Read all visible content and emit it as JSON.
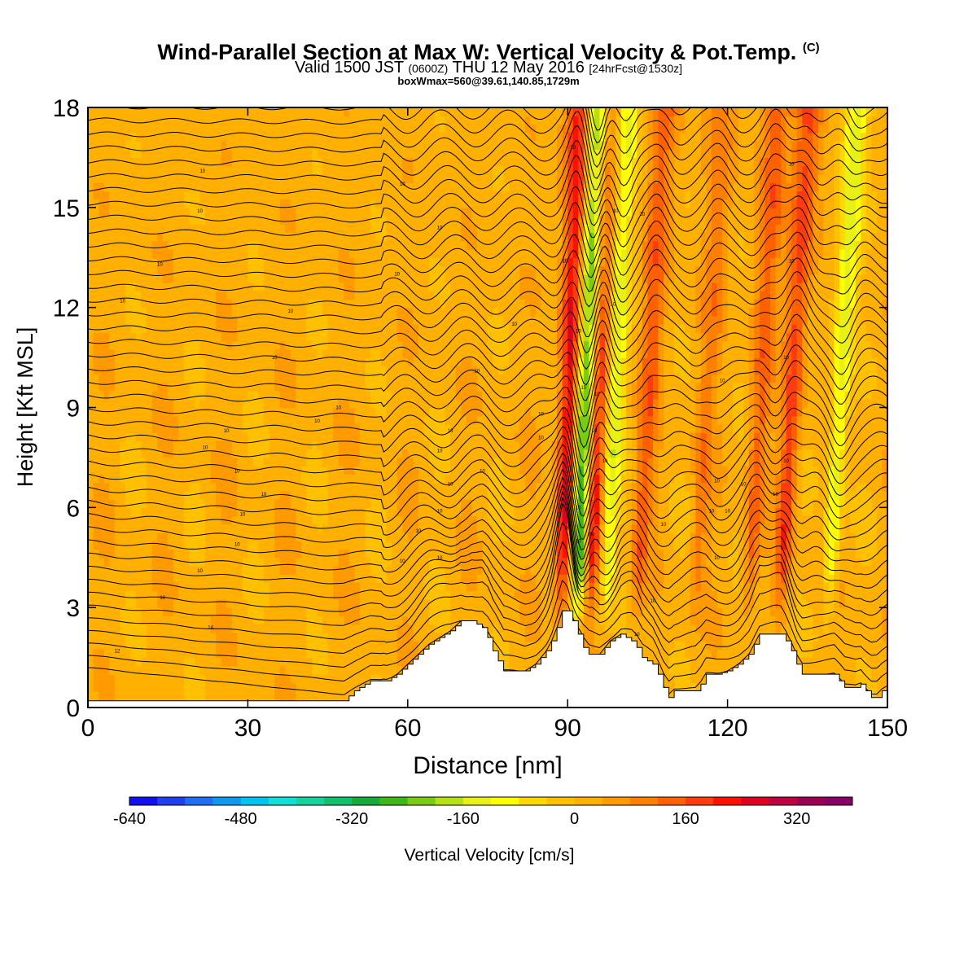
{
  "header": {
    "title": "Wind-Parallel Section at Max W: Vertical Velocity & Pot.Temp.",
    "copyright": "(C)",
    "valid_prefix": "Valid 1500 JST",
    "valid_utc": "(0600Z)",
    "valid_date": "THU 12 May 2016",
    "forecast": "[24hrFcst@1530z]",
    "box_info": "boxWmax=560@39.61,140.85,1729m"
  },
  "chart_data": {
    "type": "heatmap",
    "xlabel": "Distance [nm]",
    "ylabel": "Height [Kft MSL]",
    "xlim": [
      0,
      150
    ],
    "ylim": [
      0,
      18
    ],
    "x_ticks": [
      0,
      30,
      60,
      90,
      120,
      150
    ],
    "y_ticks": [
      0,
      3,
      6,
      9,
      12,
      15,
      18
    ],
    "colorbar": {
      "label": "Vertical Velocity [cm/s]",
      "min": -640,
      "max": 400,
      "step": 40,
      "tick_values": [
        -640,
        -480,
        -320,
        -160,
        0,
        160,
        320
      ],
      "colors": [
        "#1010f0",
        "#1e40f0",
        "#1f6ff2",
        "#0f98f0",
        "#00c4f0",
        "#10e0d8",
        "#14d49e",
        "#14c06c",
        "#16aa3a",
        "#3cb818",
        "#78cc12",
        "#b4e014",
        "#e8f014",
        "#ffff00",
        "#ffd800",
        "#ffc000",
        "#ffb000",
        "#ff9a00",
        "#ff8000",
        "#ff6000",
        "#ff3c10",
        "#ff1000",
        "#e00020",
        "#c00040",
        "#9c0050",
        "#880068"
      ]
    },
    "terrain": [
      [
        0,
        0.2
      ],
      [
        2,
        0.2
      ],
      [
        5,
        0.2
      ],
      [
        8,
        0.2
      ],
      [
        12,
        0.2
      ],
      [
        16,
        0.2
      ],
      [
        20,
        0.2
      ],
      [
        25,
        0.2
      ],
      [
        30,
        0.2
      ],
      [
        35,
        0.2
      ],
      [
        40,
        0.2
      ],
      [
        44,
        0.2
      ],
      [
        48,
        0.2
      ],
      [
        50,
        0.5
      ],
      [
        53,
        0.8
      ],
      [
        56,
        0.8
      ],
      [
        58,
        1.0
      ],
      [
        60,
        1.3
      ],
      [
        62,
        1.6
      ],
      [
        64,
        1.9
      ],
      [
        66,
        2.1
      ],
      [
        68,
        2.3
      ],
      [
        70,
        2.6
      ],
      [
        72,
        2.6
      ],
      [
        74,
        2.4
      ],
      [
        75,
        2.1
      ],
      [
        76,
        1.7
      ],
      [
        77,
        1.4
      ],
      [
        78,
        1.1
      ],
      [
        80,
        1.1
      ],
      [
        82,
        1.1
      ],
      [
        84,
        1.3
      ],
      [
        85,
        1.5
      ],
      [
        86,
        1.7
      ],
      [
        87,
        2.0
      ],
      [
        88,
        2.4
      ],
      [
        89,
        2.9
      ],
      [
        90,
        2.9
      ],
      [
        91,
        2.6
      ],
      [
        92,
        2.2
      ],
      [
        93,
        1.8
      ],
      [
        94,
        1.6
      ],
      [
        96,
        1.6
      ],
      [
        97,
        1.8
      ],
      [
        98,
        2.0
      ],
      [
        100,
        2.2
      ],
      [
        102,
        2.0
      ],
      [
        103,
        1.8
      ],
      [
        104,
        1.5
      ],
      [
        106,
        1.3
      ],
      [
        107,
        1.0
      ],
      [
        108,
        0.6
      ],
      [
        109,
        0.3
      ],
      [
        110,
        0.5
      ],
      [
        112,
        0.5
      ],
      [
        114,
        0.5
      ],
      [
        115,
        0.7
      ],
      [
        116,
        1.0
      ],
      [
        118,
        1.0
      ],
      [
        120,
        1.1
      ],
      [
        122,
        1.3
      ],
      [
        124,
        1.6
      ],
      [
        125,
        1.9
      ],
      [
        126,
        2.2
      ],
      [
        128,
        2.2
      ],
      [
        130,
        2.2
      ],
      [
        131,
        2.0
      ],
      [
        132,
        1.7
      ],
      [
        133,
        1.3
      ],
      [
        134,
        1.0
      ],
      [
        136,
        1.0
      ],
      [
        138,
        1.0
      ],
      [
        140,
        1.0
      ],
      [
        141,
        0.8
      ],
      [
        142,
        0.6
      ],
      [
        144,
        0.6
      ],
      [
        145,
        0.7
      ],
      [
        146,
        0.5
      ],
      [
        147,
        0.3
      ],
      [
        148,
        0.3
      ],
      [
        149,
        0.5
      ],
      [
        150,
        0.6
      ]
    ],
    "updraft_bands": [
      {
        "x": 89.5,
        "value": 250
      },
      {
        "x": 92.5,
        "value": -320
      },
      {
        "x": 95,
        "value": 200
      },
      {
        "x": 98,
        "value": -160
      },
      {
        "x": 104,
        "value": 120
      },
      {
        "x": 115,
        "value": 80
      },
      {
        "x": 125,
        "value": 120
      },
      {
        "x": 131,
        "value": 160
      },
      {
        "x": 140,
        "value": -160
      }
    ],
    "contour_labels": [
      {
        "x": 6.5,
        "y": 12.2,
        "text": "10"
      },
      {
        "x": 13.5,
        "y": 13.3,
        "text": "10"
      },
      {
        "x": 21,
        "y": 14.9,
        "text": "10"
      },
      {
        "x": 21.5,
        "y": 16.1,
        "text": "10"
      },
      {
        "x": 38,
        "y": 11.9,
        "text": "10"
      },
      {
        "x": 35,
        "y": 10.5,
        "text": "10"
      },
      {
        "x": 47,
        "y": 9.0,
        "text": "10"
      },
      {
        "x": 43,
        "y": 8.6,
        "text": "10"
      },
      {
        "x": 26,
        "y": 8.3,
        "text": "10"
      },
      {
        "x": 22,
        "y": 7.8,
        "text": "10"
      },
      {
        "x": 28,
        "y": 7.1,
        "text": "10"
      },
      {
        "x": 33,
        "y": 6.4,
        "text": "10"
      },
      {
        "x": 29,
        "y": 5.8,
        "text": "10"
      },
      {
        "x": 28,
        "y": 4.9,
        "text": "10"
      },
      {
        "x": 21,
        "y": 4.1,
        "text": "10"
      },
      {
        "x": 14,
        "y": 3.3,
        "text": "10"
      },
      {
        "x": 23,
        "y": 2.4,
        "text": "14"
      },
      {
        "x": 5.5,
        "y": 1.7,
        "text": "12"
      },
      {
        "x": 59,
        "y": 15.7,
        "text": "10"
      },
      {
        "x": 66,
        "y": 14.4,
        "text": "10"
      },
      {
        "x": 58,
        "y": 13.0,
        "text": "10"
      },
      {
        "x": 80,
        "y": 11.5,
        "text": "10"
      },
      {
        "x": 73,
        "y": 10.1,
        "text": "10"
      },
      {
        "x": 68,
        "y": 8.3,
        "text": "10"
      },
      {
        "x": 66,
        "y": 7.7,
        "text": "10"
      },
      {
        "x": 74,
        "y": 7.1,
        "text": "10"
      },
      {
        "x": 68,
        "y": 6.7,
        "text": "10"
      },
      {
        "x": 66,
        "y": 5.9,
        "text": "10"
      },
      {
        "x": 62,
        "y": 5.3,
        "text": "10"
      },
      {
        "x": 59,
        "y": 4.4,
        "text": "10"
      },
      {
        "x": 66,
        "y": 4.5,
        "text": "10"
      },
      {
        "x": 91,
        "y": 16.8,
        "text": "10"
      },
      {
        "x": 89.5,
        "y": 13.4,
        "text": "10"
      },
      {
        "x": 92,
        "y": 11.3,
        "text": "10"
      },
      {
        "x": 99,
        "y": 14.9,
        "text": "10"
      },
      {
        "x": 104,
        "y": 14.8,
        "text": "10"
      },
      {
        "x": 98.5,
        "y": 12.1,
        "text": "10"
      },
      {
        "x": 93,
        "y": 9.6,
        "text": "10"
      },
      {
        "x": 95.5,
        "y": 9.4,
        "text": "10"
      },
      {
        "x": 85,
        "y": 8.8,
        "text": "10"
      },
      {
        "x": 85,
        "y": 8.1,
        "text": "10"
      },
      {
        "x": 95,
        "y": 8.3,
        "text": "10"
      },
      {
        "x": 97,
        "y": 7.4,
        "text": "10"
      },
      {
        "x": 92,
        "y": 6.0,
        "text": "10"
      },
      {
        "x": 90,
        "y": 5.4,
        "text": "10"
      },
      {
        "x": 92,
        "y": 5.0,
        "text": "10"
      },
      {
        "x": 94.5,
        "y": 5.2,
        "text": "10"
      },
      {
        "x": 108,
        "y": 5.5,
        "text": "10"
      },
      {
        "x": 106,
        "y": 3.2,
        "text": "10"
      },
      {
        "x": 103,
        "y": 2.2,
        "text": "10"
      },
      {
        "x": 117,
        "y": 5.9,
        "text": "10"
      },
      {
        "x": 120,
        "y": 5.9,
        "text": "10"
      },
      {
        "x": 118,
        "y": 4.5,
        "text": "10"
      },
      {
        "x": 119,
        "y": 9.8,
        "text": "10"
      },
      {
        "x": 118,
        "y": 6.8,
        "text": "10"
      },
      {
        "x": 123,
        "y": 6.7,
        "text": "10"
      },
      {
        "x": 129,
        "y": 6.4,
        "text": "10"
      },
      {
        "x": 131,
        "y": 7.4,
        "text": "10"
      },
      {
        "x": 131,
        "y": 10.5,
        "text": "10"
      },
      {
        "x": 132,
        "y": 13.4,
        "text": "10"
      },
      {
        "x": 132,
        "y": 16.3,
        "text": "10"
      }
    ]
  }
}
